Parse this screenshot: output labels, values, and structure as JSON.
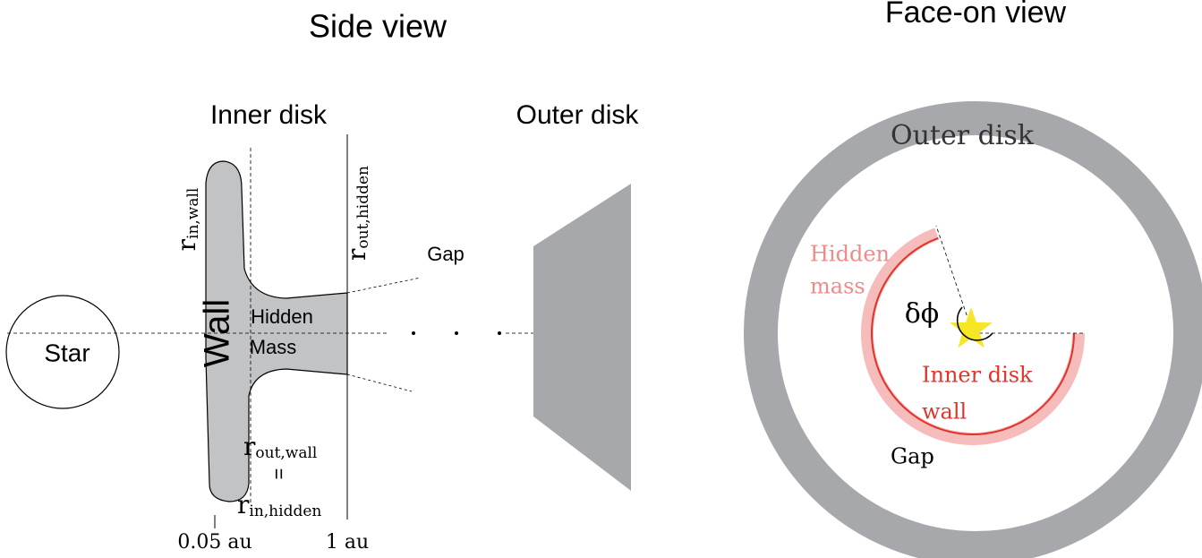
{
  "side_view": {
    "title": "Side view",
    "inner_disk": "Inner disk",
    "outer_disk": "Outer disk",
    "star": "Star",
    "wall": "Wall",
    "hidden_mass": [
      "Hidden",
      "Mass"
    ],
    "gap": "Gap",
    "r_in_wall": {
      "main": "r",
      "sub": "in,wall"
    },
    "r_out_hidden": {
      "main": "r",
      "sub": "out,hidden"
    },
    "r_out_wall": {
      "main": "r",
      "sub": "out,wall"
    },
    "equals": "=",
    "r_in_hidden": {
      "main": "r",
      "sub": "in,hidden"
    },
    "inner_radius": "0.05 au",
    "outer_radius": "1 au"
  },
  "face_on_view": {
    "title": "Face-on view",
    "outer_disk": "Outer disk",
    "hidden_mass": [
      "Hidden",
      "mass"
    ],
    "angle": "δϕ",
    "inner_disk_wall": [
      "Inner disk",
      "wall"
    ],
    "gap": "Gap"
  }
}
